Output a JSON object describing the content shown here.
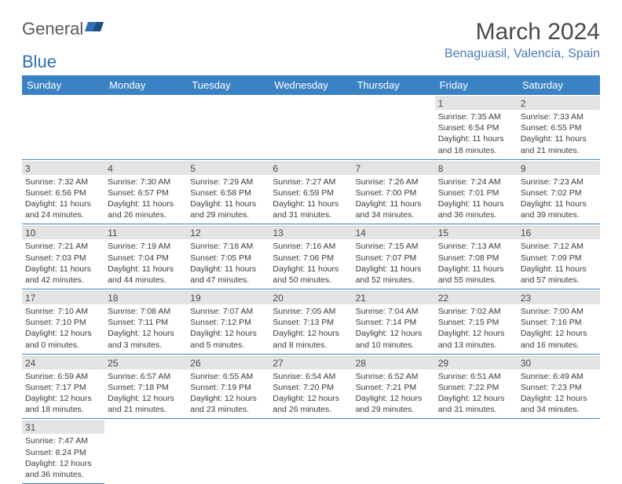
{
  "logo": {
    "text1": "General",
    "text2": "Blue"
  },
  "title": "March 2024",
  "location": "Benaguasil, Valencia, Spain",
  "weekdays": [
    "Sunday",
    "Monday",
    "Tuesday",
    "Wednesday",
    "Thursday",
    "Friday",
    "Saturday"
  ],
  "colors": {
    "header_bg": "#3b82c4",
    "header_text": "#ffffff",
    "daynum_bg": "#e4e4e4",
    "border": "#3b82c4",
    "title_color": "#4a4a4a",
    "location_color": "#4a7bb5"
  },
  "layout": {
    "first_weekday_index": 5,
    "days_in_month": 31
  },
  "days": {
    "1": {
      "sunrise": "7:35 AM",
      "sunset": "6:54 PM",
      "daylight": "11 hours and 18 minutes."
    },
    "2": {
      "sunrise": "7:33 AM",
      "sunset": "6:55 PM",
      "daylight": "11 hours and 21 minutes."
    },
    "3": {
      "sunrise": "7:32 AM",
      "sunset": "6:56 PM",
      "daylight": "11 hours and 24 minutes."
    },
    "4": {
      "sunrise": "7:30 AM",
      "sunset": "6:57 PM",
      "daylight": "11 hours and 26 minutes."
    },
    "5": {
      "sunrise": "7:29 AM",
      "sunset": "6:58 PM",
      "daylight": "11 hours and 29 minutes."
    },
    "6": {
      "sunrise": "7:27 AM",
      "sunset": "6:59 PM",
      "daylight": "11 hours and 31 minutes."
    },
    "7": {
      "sunrise": "7:26 AM",
      "sunset": "7:00 PM",
      "daylight": "11 hours and 34 minutes."
    },
    "8": {
      "sunrise": "7:24 AM",
      "sunset": "7:01 PM",
      "daylight": "11 hours and 36 minutes."
    },
    "9": {
      "sunrise": "7:23 AM",
      "sunset": "7:02 PM",
      "daylight": "11 hours and 39 minutes."
    },
    "10": {
      "sunrise": "7:21 AM",
      "sunset": "7:03 PM",
      "daylight": "11 hours and 42 minutes."
    },
    "11": {
      "sunrise": "7:19 AM",
      "sunset": "7:04 PM",
      "daylight": "11 hours and 44 minutes."
    },
    "12": {
      "sunrise": "7:18 AM",
      "sunset": "7:05 PM",
      "daylight": "11 hours and 47 minutes."
    },
    "13": {
      "sunrise": "7:16 AM",
      "sunset": "7:06 PM",
      "daylight": "11 hours and 50 minutes."
    },
    "14": {
      "sunrise": "7:15 AM",
      "sunset": "7:07 PM",
      "daylight": "11 hours and 52 minutes."
    },
    "15": {
      "sunrise": "7:13 AM",
      "sunset": "7:08 PM",
      "daylight": "11 hours and 55 minutes."
    },
    "16": {
      "sunrise": "7:12 AM",
      "sunset": "7:09 PM",
      "daylight": "11 hours and 57 minutes."
    },
    "17": {
      "sunrise": "7:10 AM",
      "sunset": "7:10 PM",
      "daylight": "12 hours and 0 minutes."
    },
    "18": {
      "sunrise": "7:08 AM",
      "sunset": "7:11 PM",
      "daylight": "12 hours and 3 minutes."
    },
    "19": {
      "sunrise": "7:07 AM",
      "sunset": "7:12 PM",
      "daylight": "12 hours and 5 minutes."
    },
    "20": {
      "sunrise": "7:05 AM",
      "sunset": "7:13 PM",
      "daylight": "12 hours and 8 minutes."
    },
    "21": {
      "sunrise": "7:04 AM",
      "sunset": "7:14 PM",
      "daylight": "12 hours and 10 minutes."
    },
    "22": {
      "sunrise": "7:02 AM",
      "sunset": "7:15 PM",
      "daylight": "12 hours and 13 minutes."
    },
    "23": {
      "sunrise": "7:00 AM",
      "sunset": "7:16 PM",
      "daylight": "12 hours and 16 minutes."
    },
    "24": {
      "sunrise": "6:59 AM",
      "sunset": "7:17 PM",
      "daylight": "12 hours and 18 minutes."
    },
    "25": {
      "sunrise": "6:57 AM",
      "sunset": "7:18 PM",
      "daylight": "12 hours and 21 minutes."
    },
    "26": {
      "sunrise": "6:55 AM",
      "sunset": "7:19 PM",
      "daylight": "12 hours and 23 minutes."
    },
    "27": {
      "sunrise": "6:54 AM",
      "sunset": "7:20 PM",
      "daylight": "12 hours and 26 minutes."
    },
    "28": {
      "sunrise": "6:52 AM",
      "sunset": "7:21 PM",
      "daylight": "12 hours and 29 minutes."
    },
    "29": {
      "sunrise": "6:51 AM",
      "sunset": "7:22 PM",
      "daylight": "12 hours and 31 minutes."
    },
    "30": {
      "sunrise": "6:49 AM",
      "sunset": "7:23 PM",
      "daylight": "12 hours and 34 minutes."
    },
    "31": {
      "sunrise": "7:47 AM",
      "sunset": "8:24 PM",
      "daylight": "12 hours and 36 minutes."
    }
  },
  "labels": {
    "sunrise": "Sunrise:",
    "sunset": "Sunset:",
    "daylight": "Daylight:"
  }
}
